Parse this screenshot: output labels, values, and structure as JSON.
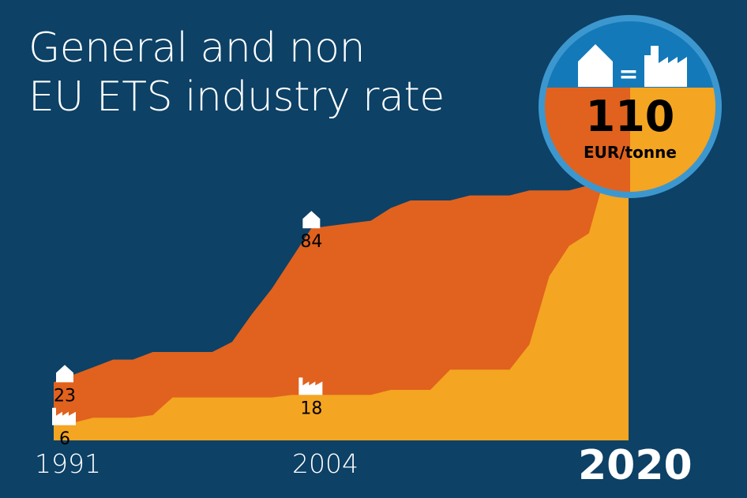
{
  "title_lines": [
    "General and non",
    "EU ETS industry rate"
  ],
  "colors": {
    "background": "#0d4166",
    "general_rate": "#e0621e",
    "industry_rate": "#f4a522",
    "badge_blue": "#1479b9",
    "badge_ring": "#3d97cf"
  },
  "x_labels": {
    "start": "1991",
    "mid": "2004",
    "end": "2020"
  },
  "badge": {
    "value": "110",
    "unit": "EUR/tonne",
    "equals": "=",
    "icons": [
      "house-icon",
      "factory-icon"
    ]
  },
  "chart_data": {
    "type": "area",
    "x": [
      1991,
      1992,
      1993,
      1994,
      1995,
      1996,
      1997,
      1998,
      1999,
      2000,
      2001,
      2002,
      2003,
      2004,
      2005,
      2006,
      2007,
      2008,
      2009,
      2010,
      2011,
      2012,
      2013,
      2014,
      2015,
      2016,
      2017,
      2018,
      2019,
      2020
    ],
    "series": [
      {
        "values": [
          23,
          26,
          29,
          32,
          32,
          35,
          35,
          35,
          35,
          39,
          50,
          60,
          72,
          84,
          85,
          86,
          87,
          92,
          95,
          95,
          95,
          97,
          97,
          97,
          99,
          99,
          99,
          101,
          110,
          110
        ]
      },
      {
        "values": [
          6,
          7,
          9,
          9,
          9,
          10,
          17,
          17,
          17,
          17,
          17,
          17,
          18,
          18,
          18,
          18,
          18,
          20,
          20,
          20,
          28,
          28,
          28,
          28,
          38,
          65,
          77,
          82,
          110,
          110
        ]
      }
    ],
    "annotations": [
      {
        "year": "1991",
        "label": "23",
        "icon": "house-icon"
      },
      {
        "year": "1991",
        "label": "6",
        "icon": "factory-icon"
      },
      {
        "year": "2004",
        "label": "84",
        "icon": "house-icon"
      },
      {
        "year": "2004",
        "label": "18",
        "icon": "factory-icon"
      }
    ],
    "xlim": [
      1991,
      2020
    ],
    "ylim": [
      0,
      125
    ],
    "grid": false
  }
}
